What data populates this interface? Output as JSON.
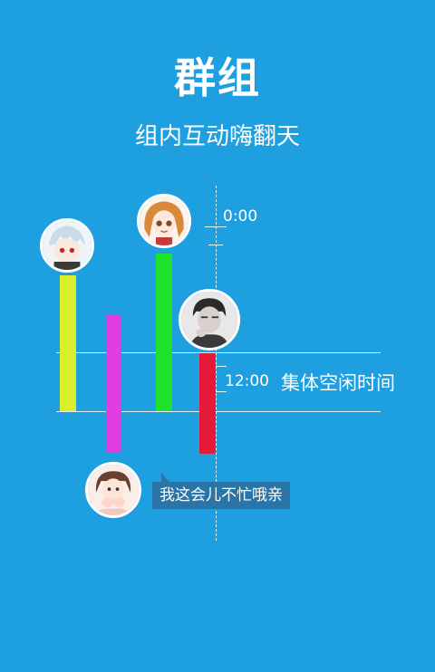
{
  "header": {
    "title": "群组",
    "subtitle": "组内互动嗨翻天"
  },
  "timeline": {
    "start_time": "0:00",
    "mid_time": "12:00",
    "free_label": "集体空闲时间"
  },
  "message": {
    "text": "我这会儿不忙哦亲"
  },
  "colors": {
    "background": "#1d9fe0",
    "bar_lime": "#d8ef2a",
    "bar_magenta": "#e03ee0",
    "bar_green": "#1fe02a",
    "bar_red": "#e51a3a",
    "bubble": "#2a74a8"
  },
  "avatars": [
    {
      "icon": "anime-boy-avatar-icon"
    },
    {
      "icon": "anime-girl-avatar-icon"
    },
    {
      "icon": "man-photo-avatar-icon"
    },
    {
      "icon": "girl-photo-avatar-icon"
    }
  ]
}
